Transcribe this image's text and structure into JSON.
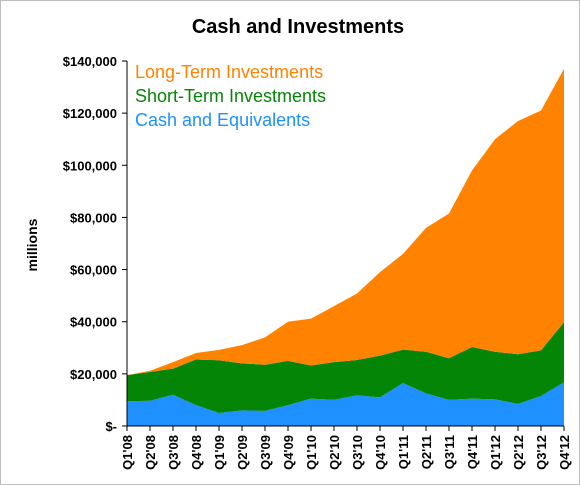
{
  "chart_data": {
    "type": "area",
    "stacked": true,
    "title": "Cash and Investments",
    "xlabel": "",
    "ylabel": "millions",
    "ylim": [
      0,
      140000
    ],
    "yticks": [
      0,
      20000,
      40000,
      60000,
      80000,
      100000,
      120000,
      140000
    ],
    "ytick_labels": [
      "$-",
      "$20,000",
      "$40,000",
      "$60,000",
      "$80,000",
      "$100,000",
      "$120,000",
      "$140,000"
    ],
    "categories": [
      "Q1'08",
      "Q2'08",
      "Q3'08",
      "Q4'08",
      "Q1'09",
      "Q2'09",
      "Q3'09",
      "Q4'09",
      "Q1'10",
      "Q2'10",
      "Q3'10",
      "Q4'10",
      "Q1'11",
      "Q2'11",
      "Q3'11",
      "Q4'11",
      "Q1'12",
      "Q2'12",
      "Q3'12",
      "Q4'12"
    ],
    "legend_position": "top-left",
    "series": [
      {
        "name": "Cash and Equivalents",
        "color": "#1e90ff",
        "values": [
          9500,
          9700,
          12000,
          8000,
          5000,
          6000,
          5800,
          8000,
          10500,
          10000,
          11800,
          11000,
          16500,
          12500,
          10000,
          10500,
          10200,
          8500,
          11500,
          16800
        ]
      },
      {
        "name": "Short-Term Investments",
        "color": "#058505",
        "values": [
          10000,
          11000,
          10000,
          17500,
          20200,
          18000,
          17700,
          17000,
          12700,
          14500,
          13500,
          16000,
          12800,
          16000,
          16000,
          19800,
          18300,
          19000,
          17500,
          23000
        ]
      },
      {
        "name": "Long-Term Investments",
        "color": "#ff8200",
        "values": [
          0,
          500,
          2500,
          2500,
          4000,
          7000,
          10500,
          15000,
          18000,
          21500,
          25500,
          32000,
          36700,
          47500,
          55500,
          67700,
          81500,
          89500,
          92000,
          97200
        ]
      }
    ]
  }
}
